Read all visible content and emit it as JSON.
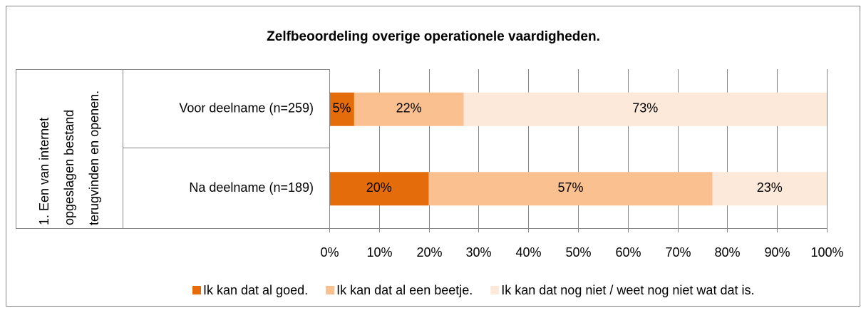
{
  "chart_data": {
    "type": "stacked-bar-horizontal",
    "title": "Zelfbeoordeling overige operationele vaardigheden.",
    "group_label": "1. Een van internet opgeslagen bestand terugvinden en openen.",
    "categories": [
      "Voor deelname (n=259)",
      "Na deelname (n=189)"
    ],
    "series": [
      {
        "name": "Ik kan dat al goed.",
        "color": "#e46c0a",
        "values": [
          5,
          20
        ],
        "value_labels": [
          "5%",
          "20%"
        ]
      },
      {
        "name": "Ik kan dat al een beetje.",
        "color": "#fac090",
        "values": [
          22,
          57
        ],
        "value_labels": [
          "22%",
          "57%"
        ]
      },
      {
        "name": "Ik kan dat nog niet / weet nog niet wat dat is.",
        "color": "#fde9d9",
        "values": [
          73,
          23
        ],
        "value_labels": [
          "73%",
          "23%"
        ]
      }
    ],
    "xlim": [
      0,
      100
    ],
    "xticks": [
      {
        "value": 0,
        "label": "0%"
      },
      {
        "value": 10,
        "label": "10%"
      },
      {
        "value": 20,
        "label": "20%"
      },
      {
        "value": 30,
        "label": "30%"
      },
      {
        "value": 40,
        "label": "40%"
      },
      {
        "value": 50,
        "label": "50%"
      },
      {
        "value": 60,
        "label": "60%"
      },
      {
        "value": 70,
        "label": "70%"
      },
      {
        "value": 80,
        "label": "80%"
      },
      {
        "value": 90,
        "label": "90%"
      },
      {
        "value": 100,
        "label": "100%"
      }
    ],
    "grid": true,
    "legend": "bottom"
  }
}
